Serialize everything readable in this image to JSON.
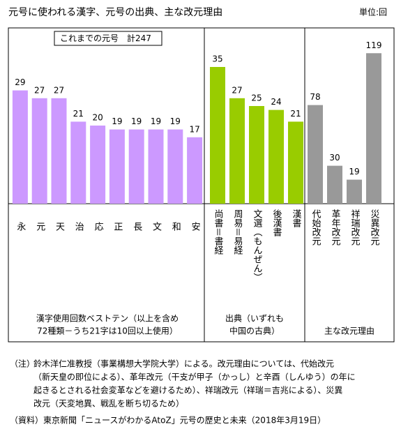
{
  "header": {
    "title": "元号に使われる漢字、元号の出典、主な改元理由",
    "unit": "単位:回",
    "total": "これまでの元号　計247"
  },
  "chart_data": [
    {
      "type": "bar",
      "categories": [
        "永",
        "元",
        "天",
        "治",
        "応",
        "正",
        "長",
        "文",
        "和",
        "安"
      ],
      "values": [
        29,
        27,
        27,
        21,
        20,
        19,
        19,
        19,
        19,
        17
      ],
      "color": "#cc99ff",
      "ylim": [
        0,
        45
      ],
      "xlabel": [
        "漢字使用回数ベストテン（以上を含め",
        "72種類－うち21字は10回以上使用）"
      ]
    },
    {
      "type": "bar",
      "categories": [
        "尚書＝書経",
        "周易＝易経",
        "文選（もんぜん）",
        "後漢書",
        "漢書"
      ],
      "values": [
        35,
        27,
        25,
        24,
        21
      ],
      "color": "#99cc00",
      "ylim": [
        0,
        45
      ],
      "xlabel": [
        "出典（いずれも",
        "中国の古典）"
      ]
    },
    {
      "type": "bar",
      "categories": [
        "代始改元",
        "革年改元",
        "祥瑞改元",
        "災異改元"
      ],
      "values": [
        78,
        30,
        19,
        119
      ],
      "color": "#999999",
      "ylim": [
        0,
        139
      ],
      "xlabel": [
        "主な改元理由"
      ]
    }
  ],
  "notes": {
    "head": "（注）",
    "lines": [
      "鈴木洋仁准教授（事業構想大学院大学）による。改元理由については、代始改元",
      "（新天皇の即位による）、革年改元（干支が甲子（かっし）と辛酉（しんゆう）の年に",
      "起きるとされる社会変革などを避けるため）、祥瑞改元（祥瑞＝吉兆による）、災異",
      "改元（天変地異、戦乱を断ち切るため）"
    ]
  },
  "source": "（資料）東京新聞「ニュースがわかるAtoZ」元号の歴史と未来（2018年3月19日）"
}
